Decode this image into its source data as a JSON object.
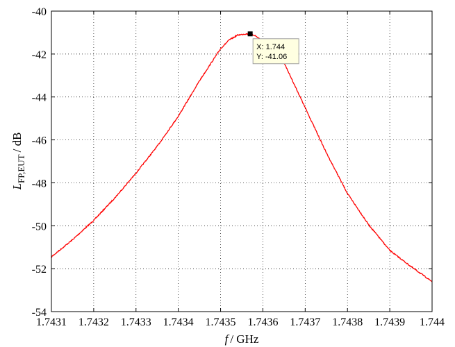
{
  "chart_data": {
    "type": "line",
    "title": "",
    "xlabel_symbol": "f",
    "xlabel_unit": "/ GHz",
    "ylabel_symbol": "L",
    "ylabel_subscript": "FP,EUT",
    "ylabel_unit": "/ dB",
    "xlim": [
      1.7431,
      1.744
    ],
    "ylim": [
      -54,
      -40
    ],
    "xticks": [
      "1.7431",
      "1.7432",
      "1.7433",
      "1.7434",
      "1.7435",
      "1.7436",
      "1.7437",
      "1.7438",
      "1.7439",
      "1.744"
    ],
    "yticks": [
      "-40",
      "-42",
      "-44",
      "-46",
      "-48",
      "-50",
      "-52",
      "-54"
    ],
    "grid": true,
    "line_color": "#ff0000",
    "series": [
      {
        "x": [
          1.7431,
          1.74315,
          1.7432,
          1.74325,
          1.7433,
          1.74335,
          1.7434,
          1.74345,
          1.7435,
          1.74352,
          1.74354,
          1.74356,
          1.74358,
          1.7436,
          1.74365,
          1.7437,
          1.74375,
          1.7438,
          1.74385,
          1.7439,
          1.74395,
          1.744
        ],
        "y": [
          -51.45,
          -50.65,
          -49.75,
          -48.7,
          -47.55,
          -46.3,
          -44.9,
          -43.25,
          -41.75,
          -41.35,
          -41.12,
          -41.06,
          -41.12,
          -41.4,
          -42.4,
          -44.5,
          -46.6,
          -48.5,
          -49.95,
          -51.15,
          -51.9,
          -52.6
        ]
      }
    ],
    "datatip": {
      "x": 1.74357,
      "y": -41.06,
      "x_text": "X: 1.744",
      "y_text": "Y: -41.06"
    }
  }
}
